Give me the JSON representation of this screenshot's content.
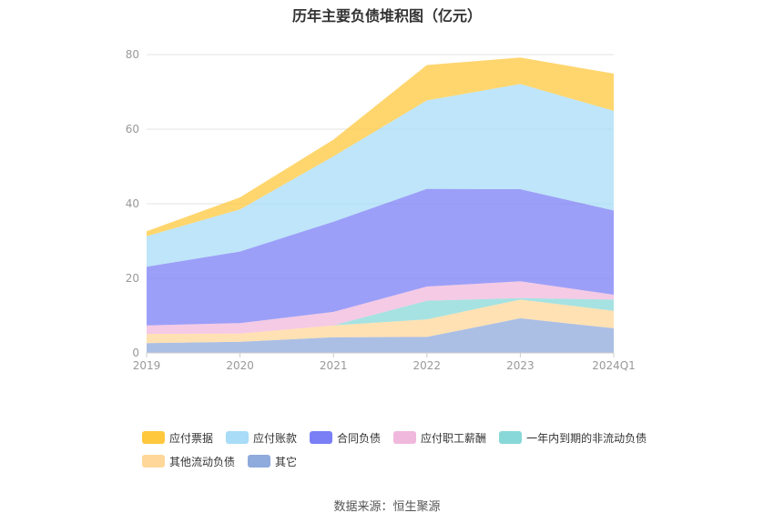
{
  "title": "历年主要负债堆积图（亿元）",
  "source": "数据来源：恒生聚源",
  "chart_data": {
    "type": "area",
    "stacked": true,
    "categories": [
      "2019",
      "2020",
      "2021",
      "2022",
      "2023",
      "2024Q1"
    ],
    "ylim": [
      0,
      80
    ],
    "yticks": [
      "0",
      "20",
      "40",
      "60",
      "80"
    ],
    "grid": true,
    "legend_position": "bottom",
    "series": [
      {
        "name": "其它",
        "color": "#8faadc",
        "values": [
          2.6,
          3.0,
          4.2,
          4.3,
          9.3,
          6.6
        ]
      },
      {
        "name": "其他流动负债",
        "color": "#ffd799",
        "values": [
          2.5,
          2.2,
          3.2,
          4.7,
          5.0,
          4.7
        ]
      },
      {
        "name": "一年内到期的非流动负债",
        "color": "#88d8d8",
        "values": [
          0.0,
          0.0,
          0.0,
          5.0,
          0.4,
          3.0
        ]
      },
      {
        "name": "应付职工薪酬",
        "color": "#f0b8dc",
        "values": [
          2.3,
          2.8,
          3.6,
          3.8,
          4.5,
          1.3
        ]
      },
      {
        "name": "合同负债",
        "color": "#7b7ff5",
        "values": [
          15.7,
          19.2,
          24.2,
          26.2,
          24.7,
          22.6
        ]
      },
      {
        "name": "应付账款",
        "color": "#a8dcf7",
        "values": [
          8.2,
          11.3,
          17.5,
          23.7,
          28.2,
          26.7
        ]
      },
      {
        "name": "应付票据",
        "color": "#ffc83d",
        "values": [
          1.3,
          3.2,
          4.5,
          9.5,
          7.1,
          10.0
        ]
      }
    ],
    "legend_order": [
      "应付票据",
      "应付账款",
      "合同负债",
      "应付职工薪酬",
      "一年内到期的非流动负债",
      "其他流动负债",
      "其它"
    ]
  }
}
